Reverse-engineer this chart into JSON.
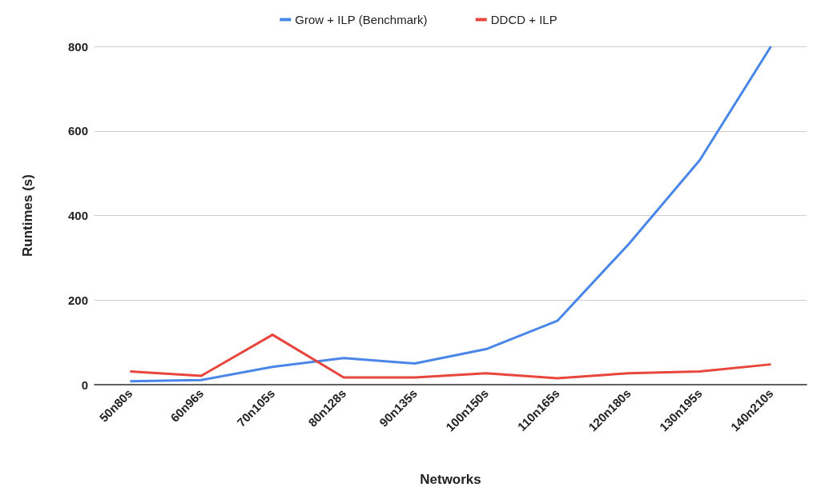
{
  "chart_data": {
    "type": "line",
    "xlabel": "Networks",
    "ylabel": "Runtimes (s)",
    "categories": [
      "50n80s",
      "60n96s",
      "70n105s",
      "80n128s",
      "90n135s",
      "100n150s",
      "110n165s",
      "120n180s",
      "130n195s",
      "140n210s"
    ],
    "series": [
      {
        "name": "Grow + ILP (Benchmark)",
        "color": "#4a86e8",
        "values": [
          8,
          11,
          42,
          63,
          50,
          84,
          151,
          332,
          531,
          800
        ]
      },
      {
        "name": "DDCD + ILP",
        "color": "#e8453c",
        "values": [
          31,
          21,
          118,
          17,
          17,
          27,
          15,
          27,
          31,
          48
        ]
      }
    ],
    "ylim": [
      0,
      800
    ],
    "yticks": [
      0,
      200,
      400,
      600,
      800
    ],
    "grid": "y",
    "legend": "top",
    "marker": "none"
  }
}
